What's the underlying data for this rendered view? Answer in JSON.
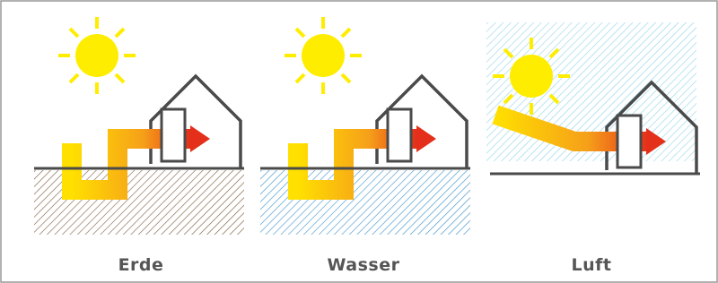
{
  "panels": [
    {
      "label": "Erde"
    },
    {
      "label": "Wasser"
    },
    {
      "label": "Luft"
    }
  ]
}
